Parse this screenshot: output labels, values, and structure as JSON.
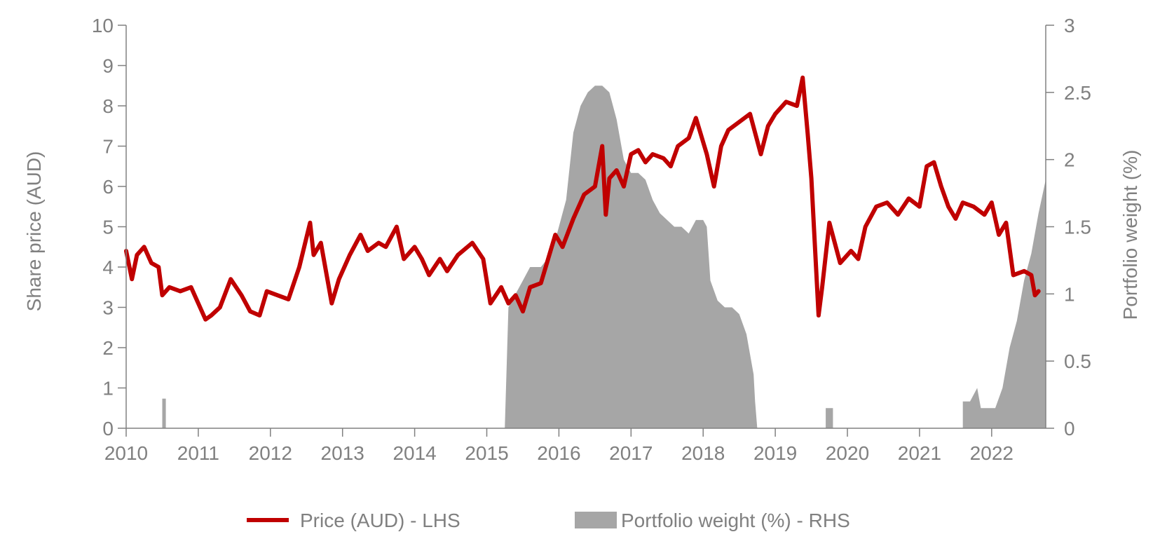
{
  "chart_data": {
    "type": "line",
    "title": "",
    "x_ticks": [
      "2010",
      "2011",
      "2012",
      "2013",
      "2014",
      "2015",
      "2016",
      "2017",
      "2018",
      "2019",
      "2020",
      "2021",
      "2022"
    ],
    "xlim": [
      2010.0,
      2022.75
    ],
    "ylabel": "Share price (AUD)",
    "ylim": [
      0,
      10
    ],
    "y_ticks": [
      "0",
      "1",
      "2",
      "3",
      "4",
      "5",
      "6",
      "7",
      "8",
      "9",
      "10"
    ],
    "y2label": "Portfolio weight (%)",
    "y2lim": [
      0,
      3
    ],
    "y2_ticks": [
      "0",
      "0.5",
      "1",
      "1.5",
      "2",
      "2.5",
      "3"
    ],
    "grid": false,
    "legend_position": "bottom",
    "colors": {
      "price": "#c00000",
      "weight": "#a6a6a6",
      "axis": "#808080"
    },
    "series": [
      {
        "name": "Price (AUD) - LHS",
        "type": "line",
        "axis": "left",
        "x": [
          2010.0,
          2010.08,
          2010.15,
          2010.25,
          2010.35,
          2010.45,
          2010.5,
          2010.6,
          2010.75,
          2010.9,
          2011.0,
          2011.1,
          2011.18,
          2011.3,
          2011.45,
          2011.6,
          2011.72,
          2011.85,
          2011.95,
          2012.1,
          2012.25,
          2012.4,
          2012.55,
          2012.6,
          2012.7,
          2012.85,
          2012.95,
          2013.1,
          2013.25,
          2013.35,
          2013.5,
          2013.6,
          2013.75,
          2013.85,
          2014.0,
          2014.1,
          2014.2,
          2014.35,
          2014.45,
          2014.6,
          2014.8,
          2014.95,
          2015.05,
          2015.2,
          2015.3,
          2015.4,
          2015.5,
          2015.6,
          2015.75,
          2015.95,
          2016.05,
          2016.2,
          2016.35,
          2016.5,
          2016.6,
          2016.65,
          2016.7,
          2016.8,
          2016.9,
          2017.0,
          2017.1,
          2017.2,
          2017.3,
          2017.45,
          2017.55,
          2017.65,
          2017.8,
          2017.9,
          2018.05,
          2018.15,
          2018.25,
          2018.35,
          2018.5,
          2018.65,
          2018.8,
          2018.9,
          2019.0,
          2019.15,
          2019.3,
          2019.38,
          2019.45,
          2019.5,
          2019.6,
          2019.65,
          2019.75,
          2019.9,
          2020.05,
          2020.15,
          2020.25,
          2020.4,
          2020.55,
          2020.7,
          2020.85,
          2021.0,
          2021.1,
          2021.2,
          2021.3,
          2021.4,
          2021.5,
          2021.6,
          2021.75,
          2021.9,
          2022.0,
          2022.1,
          2022.2,
          2022.3,
          2022.45,
          2022.55,
          2022.6,
          2022.65
        ],
        "values": [
          4.4,
          3.7,
          4.3,
          4.5,
          4.1,
          4.0,
          3.3,
          3.5,
          3.4,
          3.5,
          3.1,
          2.7,
          2.8,
          3.0,
          3.7,
          3.3,
          2.9,
          2.8,
          3.4,
          3.3,
          3.2,
          4.0,
          5.1,
          4.3,
          4.6,
          3.1,
          3.7,
          4.3,
          4.8,
          4.4,
          4.6,
          4.5,
          5.0,
          4.2,
          4.5,
          4.2,
          3.8,
          4.2,
          3.9,
          4.3,
          4.6,
          4.2,
          3.1,
          3.5,
          3.1,
          3.3,
          2.9,
          3.5,
          3.6,
          4.8,
          4.5,
          5.2,
          5.8,
          6.0,
          7.0,
          5.3,
          6.2,
          6.4,
          6.0,
          6.8,
          6.9,
          6.6,
          6.8,
          6.7,
          6.5,
          7.0,
          7.2,
          7.7,
          6.8,
          6.0,
          7.0,
          7.4,
          7.6,
          7.8,
          6.8,
          7.5,
          7.8,
          8.1,
          8.0,
          8.7,
          7.3,
          6.2,
          2.8,
          3.5,
          5.1,
          4.1,
          4.4,
          4.2,
          5.0,
          5.5,
          5.6,
          5.3,
          5.7,
          5.5,
          6.5,
          6.6,
          6.0,
          5.5,
          5.2,
          5.6,
          5.5,
          5.3,
          5.6,
          4.8,
          5.1,
          3.8,
          3.9,
          3.8,
          3.3,
          3.4
        ]
      },
      {
        "name": "Portfolio weight (%) - RHS",
        "type": "area",
        "axis": "right",
        "x": [
          2010.0,
          2010.5,
          2010.5,
          2010.55,
          2010.55,
          2015.25,
          2015.3,
          2015.4,
          2015.5,
          2015.6,
          2015.75,
          2015.9,
          2016.0,
          2016.1,
          2016.2,
          2016.3,
          2016.4,
          2016.5,
          2016.6,
          2016.7,
          2016.8,
          2016.9,
          2017.0,
          2017.1,
          2017.2,
          2017.3,
          2017.4,
          2017.5,
          2017.6,
          2017.7,
          2017.8,
          2017.9,
          2018.0,
          2018.05,
          2018.1,
          2018.2,
          2018.3,
          2018.4,
          2018.5,
          2018.6,
          2018.7,
          2018.72,
          2018.75,
          2019.7,
          2019.7,
          2019.8,
          2019.8,
          2021.6,
          2021.6,
          2021.7,
          2021.8,
          2021.85,
          2021.95,
          2022.05,
          2022.15,
          2022.25,
          2022.35,
          2022.45,
          2022.55,
          2022.65,
          2022.75
        ],
        "values": [
          0,
          0,
          0.22,
          0.22,
          0,
          0,
          0.9,
          1.0,
          1.1,
          1.2,
          1.2,
          1.3,
          1.5,
          1.7,
          2.2,
          2.4,
          2.5,
          2.55,
          2.55,
          2.5,
          2.3,
          2.0,
          1.9,
          1.9,
          1.85,
          1.7,
          1.6,
          1.55,
          1.5,
          1.5,
          1.45,
          1.55,
          1.55,
          1.5,
          1.1,
          0.95,
          0.9,
          0.9,
          0.85,
          0.7,
          0.4,
          0.2,
          0,
          0,
          0.15,
          0.15,
          0,
          0,
          0.2,
          0.2,
          0.3,
          0.15,
          0.15,
          0.15,
          0.3,
          0.6,
          0.8,
          1.1,
          1.3,
          1.6,
          1.85
        ]
      }
    ]
  }
}
